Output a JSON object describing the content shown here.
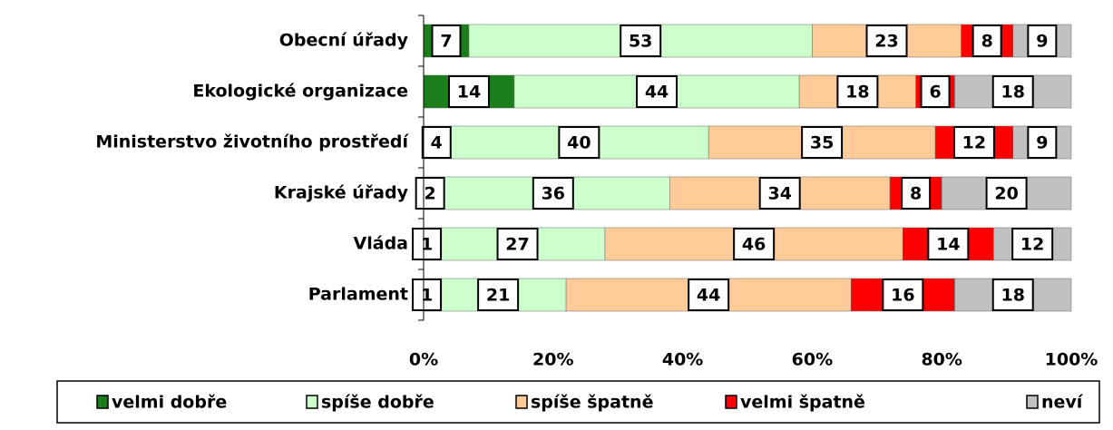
{
  "chart_data": {
    "type": "stacked_barh",
    "categories": [
      "Obecní úřady",
      "Ekologické organizace",
      "Ministerstvo životního prostředí",
      "Krajské úřady",
      "Vláda",
      "Parlament"
    ],
    "series": [
      {
        "name": "velmi dobře",
        "color": "#1a7f1a",
        "values": [
          7,
          14,
          4,
          2,
          1,
          1
        ]
      },
      {
        "name": "spíše dobře",
        "color": "#ccffcc",
        "values": [
          53,
          44,
          40,
          36,
          27,
          21
        ]
      },
      {
        "name": "spíše špatně",
        "color": "#ffcc99",
        "values": [
          23,
          18,
          35,
          34,
          46,
          44
        ]
      },
      {
        "name": "velmi špatně",
        "color": "#ff0000",
        "values": [
          8,
          6,
          12,
          8,
          14,
          16
        ]
      },
      {
        "name": "neví",
        "color": "#c0c0c0",
        "values": [
          9,
          18,
          9,
          20,
          12,
          18
        ]
      }
    ],
    "xlim": [
      0,
      100
    ],
    "xticks": [
      {
        "value": 0,
        "label": "0%"
      },
      {
        "value": 20,
        "label": "20%"
      },
      {
        "value": 40,
        "label": "40%"
      },
      {
        "value": 60,
        "label": "60%"
      },
      {
        "value": 80,
        "label": "80%"
      },
      {
        "value": 100,
        "label": "100%"
      }
    ],
    "legend": "bottom"
  }
}
